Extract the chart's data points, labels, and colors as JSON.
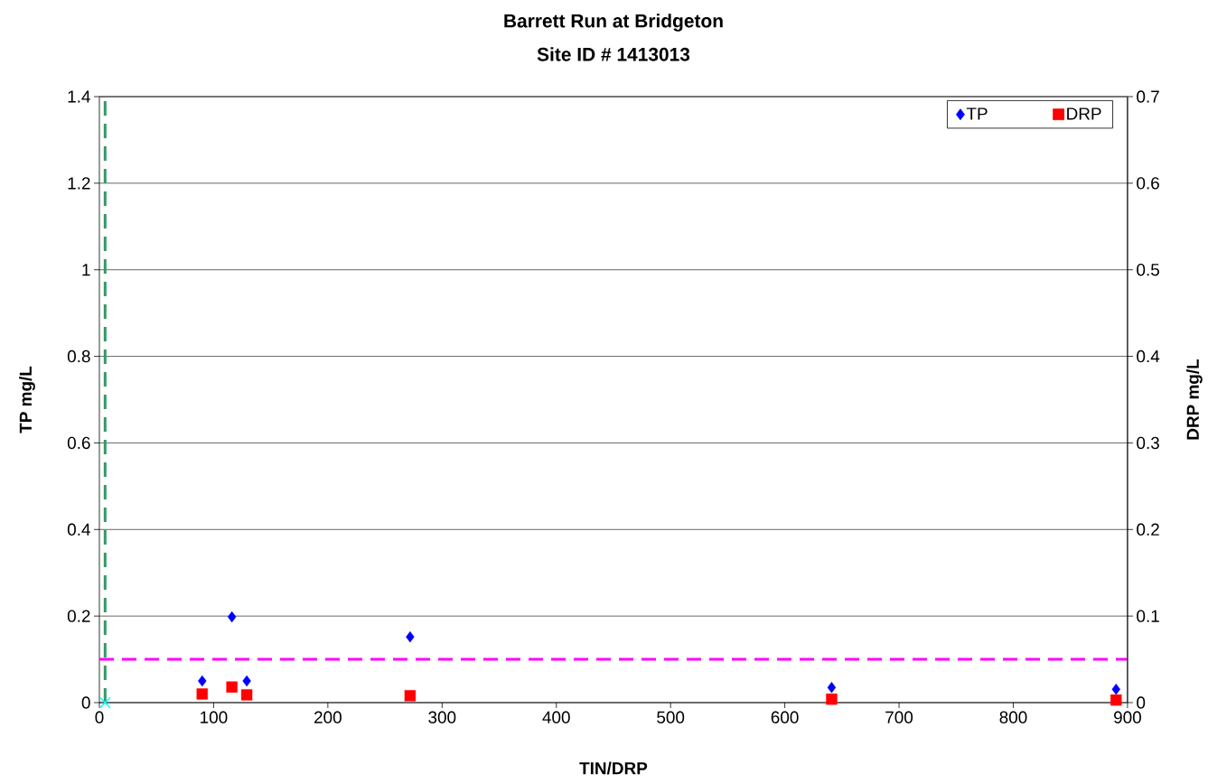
{
  "chart_data": {
    "type": "scatter",
    "title": "Barrett Run at Bridgeton",
    "subtitle": "Site ID # 1413013",
    "xlabel": "TIN/DRP",
    "ylabel": "TP mg/L",
    "y2label": "DRP mg/L",
    "xlim": [
      0,
      900
    ],
    "xticks": [
      0,
      100,
      200,
      300,
      400,
      500,
      600,
      700,
      800,
      900
    ],
    "ylim": [
      0,
      1.4
    ],
    "yticks": [
      0,
      0.2,
      0.4,
      0.6,
      0.8,
      1,
      1.2,
      1.4
    ],
    "y2lim": [
      0,
      0.7
    ],
    "y2ticks": [
      0,
      0.1,
      0.2,
      0.3,
      0.4,
      0.5,
      0.6,
      0.7
    ],
    "grid": "y",
    "legend": "top right",
    "series": [
      {
        "name": "TP",
        "color": "#0000ff",
        "marker": "diamond",
        "x": [
          90,
          116,
          129,
          272,
          641,
          890
        ],
        "values": [
          0.05,
          0.198,
          0.05,
          0.152,
          0.035,
          0.031
        ]
      },
      {
        "name": "DRP",
        "color": "#ff0000",
        "marker": "square",
        "axis": "y2",
        "x": [
          90,
          116,
          129,
          272,
          641,
          890
        ],
        "values": [
          0.01,
          0.018,
          0.009,
          0.008,
          0.004,
          0.003
        ]
      },
      {
        "color": "#00ffff",
        "marker": "cross",
        "x": [
          5
        ],
        "values": [
          0
        ]
      }
    ],
    "ref_lines": [
      {
        "axis": "x",
        "value": 5,
        "color": "#339966",
        "line_style": "dashed"
      },
      {
        "axis": "y",
        "value": 0.1,
        "color": "#ff00ff",
        "line_style": "dashed"
      }
    ]
  }
}
